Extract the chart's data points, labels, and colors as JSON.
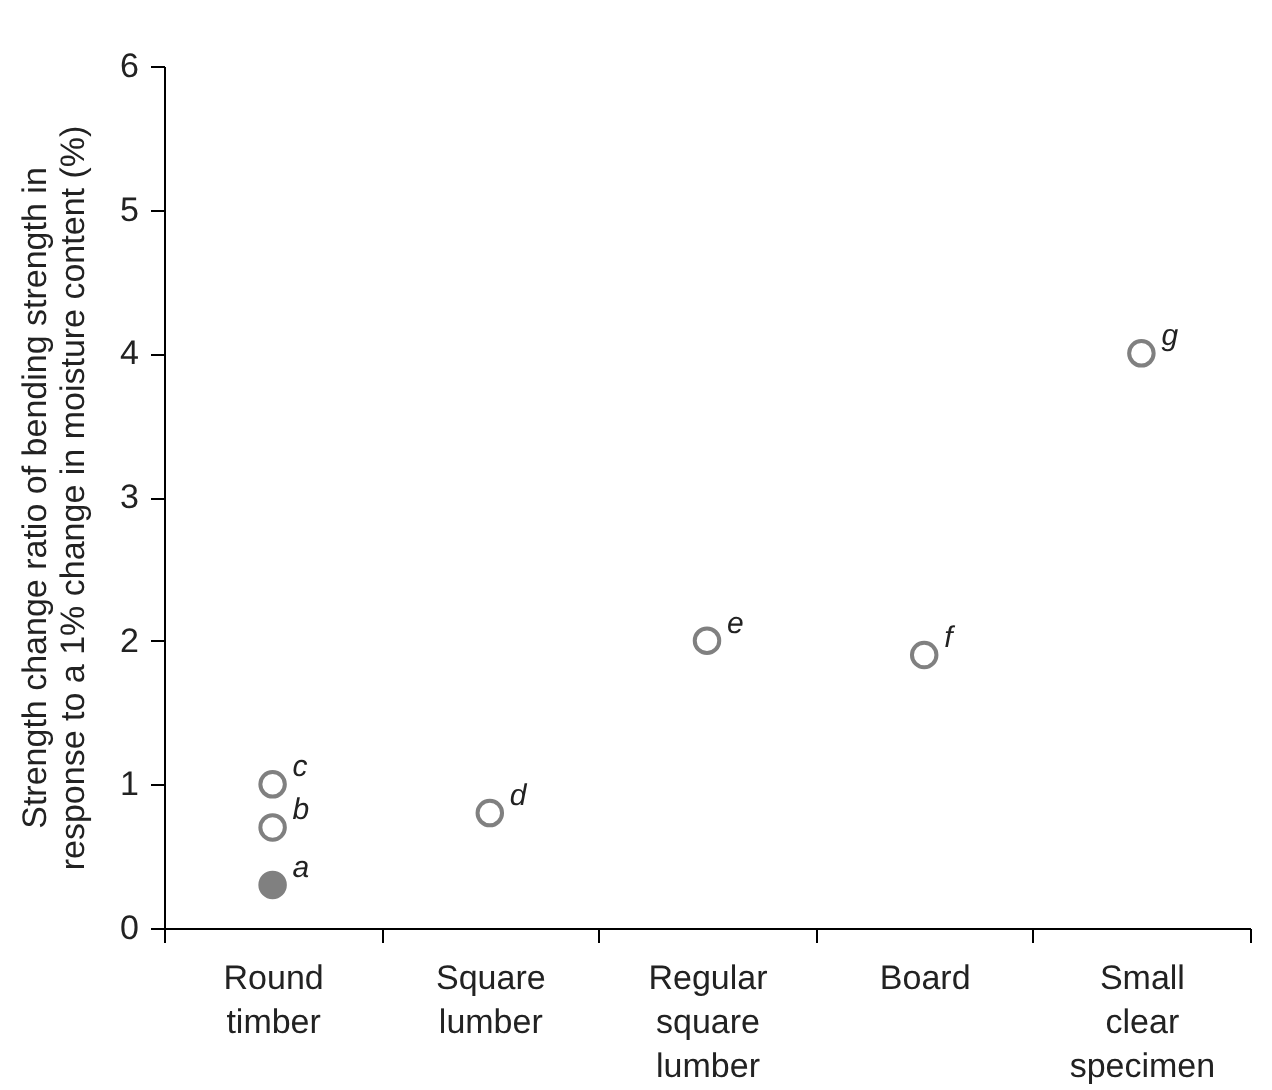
{
  "chart_data": {
    "type": "scatter",
    "ylabel": "Strength change ratio of bending strength in response to a 1% change in moisture content (%)",
    "categories": [
      "Round timber",
      "Square lumber",
      "Regular square lumber",
      "Board",
      "Small clear specimen"
    ],
    "series": [
      {
        "color": "#808080",
        "x": [
          "Round timber"
        ],
        "values": [
          0.3
        ]
      },
      {
        "color": "#ffffff",
        "x": [
          "Round timber",
          "Round timber",
          "Square lumber",
          "Regular square lumber",
          "Board",
          "Small clear specimen"
        ],
        "values": [
          0.7,
          1.0,
          0.8,
          2.0,
          1.9,
          4.0
        ]
      }
    ],
    "annotations": [
      {
        "text": "a",
        "x": "Round timber",
        "y": 0.3
      },
      {
        "text": "b",
        "x": "Round timber",
        "y": 0.7
      },
      {
        "text": "c",
        "x": "Round timber",
        "y": 1.0
      },
      {
        "text": "d",
        "x": "Square lumber",
        "y": 0.8
      },
      {
        "text": "e",
        "x": "Regular square lumber",
        "y": 2.0
      },
      {
        "text": "f",
        "x": "Board",
        "y": 1.9
      },
      {
        "text": "g",
        "x": "Small clear specimen",
        "y": 4.0
      }
    ],
    "ylim": [
      0,
      6
    ],
    "yticks": [
      0,
      1,
      2,
      3,
      4,
      5,
      6
    ],
    "marker": "circle",
    "grid": false,
    "legend": false
  }
}
